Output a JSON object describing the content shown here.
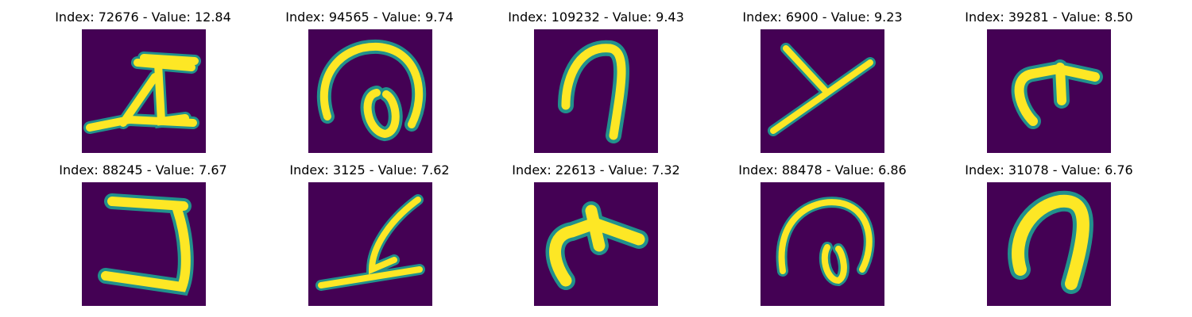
{
  "figure": {
    "background": "#ffffff",
    "colormap": [
      "#440154",
      "#3b528b",
      "#21918c",
      "#5ec962",
      "#fde725"
    ],
    "panels": [
      {
        "title": "Index: 72676 - Value: 12.84",
        "content": "handwritten stroke resembling a zigzag Z-like shape"
      },
      {
        "title": "Index: 94565 - Value: 9.74",
        "content": "handwritten circular loop with inner curl"
      },
      {
        "title": "Index: 109232 - Value: 9.43",
        "content": "handwritten inverted U / arch stroke"
      },
      {
        "title": "Index: 6900 - Value: 9.23",
        "content": "handwritten crossing strokes resembling a Y"
      },
      {
        "title": "Index: 39281 - Value: 8.50",
        "content": "handwritten curved hook with bump"
      },
      {
        "title": "Index: 88245 - Value: 7.67",
        "content": "handwritten stroke resembling a 5 / J"
      },
      {
        "title": "Index: 3125 - Value: 7.62",
        "content": "handwritten diagonal stroke with base line"
      },
      {
        "title": "Index: 22613 - Value: 7.32",
        "content": "handwritten thick curved hook with bump"
      },
      {
        "title": "Index: 88478 - Value: 6.86",
        "content": "handwritten open loop with inner curl"
      },
      {
        "title": "Index: 31078 - Value: 6.76",
        "content": "handwritten thick inverted U / arch"
      }
    ]
  }
}
